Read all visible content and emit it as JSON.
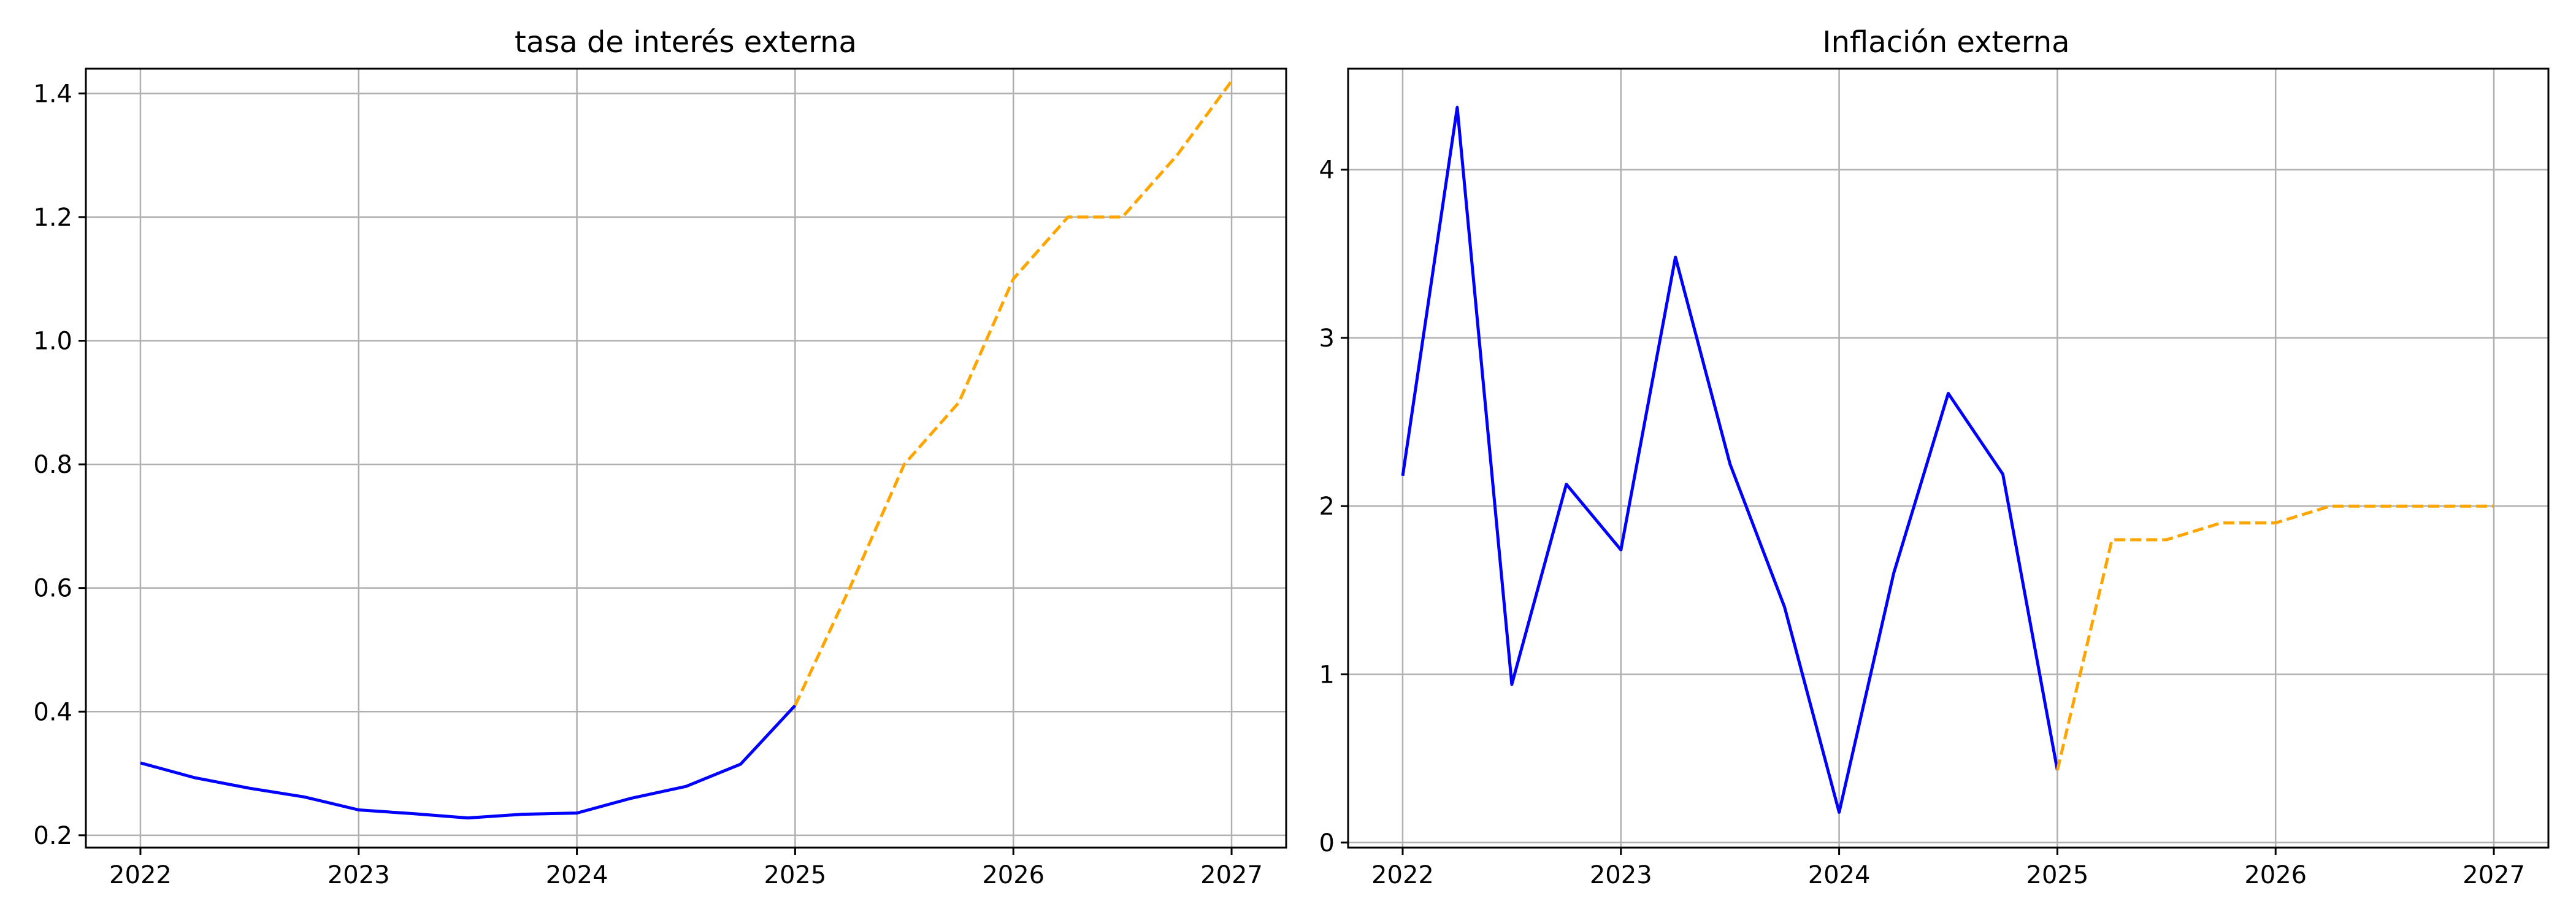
{
  "chart_data": [
    {
      "type": "line",
      "title": "tasa de interés externa",
      "xlabel": "",
      "ylabel": "",
      "x_ticks": [
        "2022",
        "2023",
        "2024",
        "2025",
        "2026",
        "2027"
      ],
      "y_ticks": [
        "0.2",
        "0.4",
        "0.6",
        "0.8",
        "1.0",
        "1.2",
        "1.4"
      ],
      "xlim": [
        2021.75,
        2027.25
      ],
      "ylim": [
        0.18,
        1.44
      ],
      "grid": true,
      "series": [
        {
          "color": "#0000ff",
          "style": "solid",
          "x": [
            2022.0,
            2022.25,
            2022.5,
            2022.75,
            2023.0,
            2023.25,
            2023.5,
            2023.75,
            2024.0,
            2024.25,
            2024.5,
            2024.75,
            2025.0
          ],
          "y": [
            0.317,
            0.293,
            0.276,
            0.262,
            0.241,
            0.235,
            0.228,
            0.234,
            0.236,
            0.26,
            0.279,
            0.315,
            0.41
          ]
        },
        {
          "color": "#ffa500",
          "style": "dashed",
          "x": [
            2025.0,
            2025.25,
            2025.5,
            2025.75,
            2026.0,
            2026.25,
            2026.5,
            2026.75,
            2027.0
          ],
          "y": [
            0.41,
            0.6,
            0.8,
            0.9,
            1.1,
            1.2,
            1.2,
            1.3,
            1.42
          ]
        }
      ]
    },
    {
      "type": "line",
      "title": "Inflación externa",
      "xlabel": "",
      "ylabel": "",
      "x_ticks": [
        "2022",
        "2023",
        "2024",
        "2025",
        "2026",
        "2027"
      ],
      "y_ticks": [
        "0",
        "1",
        "2",
        "3",
        "4"
      ],
      "xlim": [
        2021.75,
        2027.25
      ],
      "ylim": [
        -0.03,
        4.6
      ],
      "grid": true,
      "series": [
        {
          "color": "#0000ff",
          "style": "solid",
          "x": [
            2022.0,
            2022.25,
            2022.5,
            2022.75,
            2023.0,
            2023.25,
            2023.5,
            2023.75,
            2024.0,
            2024.25,
            2024.5,
            2024.75,
            2025.0
          ],
          "y": [
            2.18,
            4.37,
            0.94,
            2.13,
            1.74,
            3.48,
            2.25,
            1.4,
            0.18,
            1.6,
            2.67,
            2.19,
            0.43
          ]
        },
        {
          "color": "#ffa500",
          "style": "dashed",
          "x": [
            2025.0,
            2025.25,
            2025.5,
            2025.75,
            2026.0,
            2026.25,
            2026.5,
            2026.75,
            2027.0
          ],
          "y": [
            0.43,
            1.8,
            1.8,
            1.9,
            1.9,
            2.0,
            2.0,
            2.0,
            2.0
          ]
        }
      ]
    }
  ]
}
